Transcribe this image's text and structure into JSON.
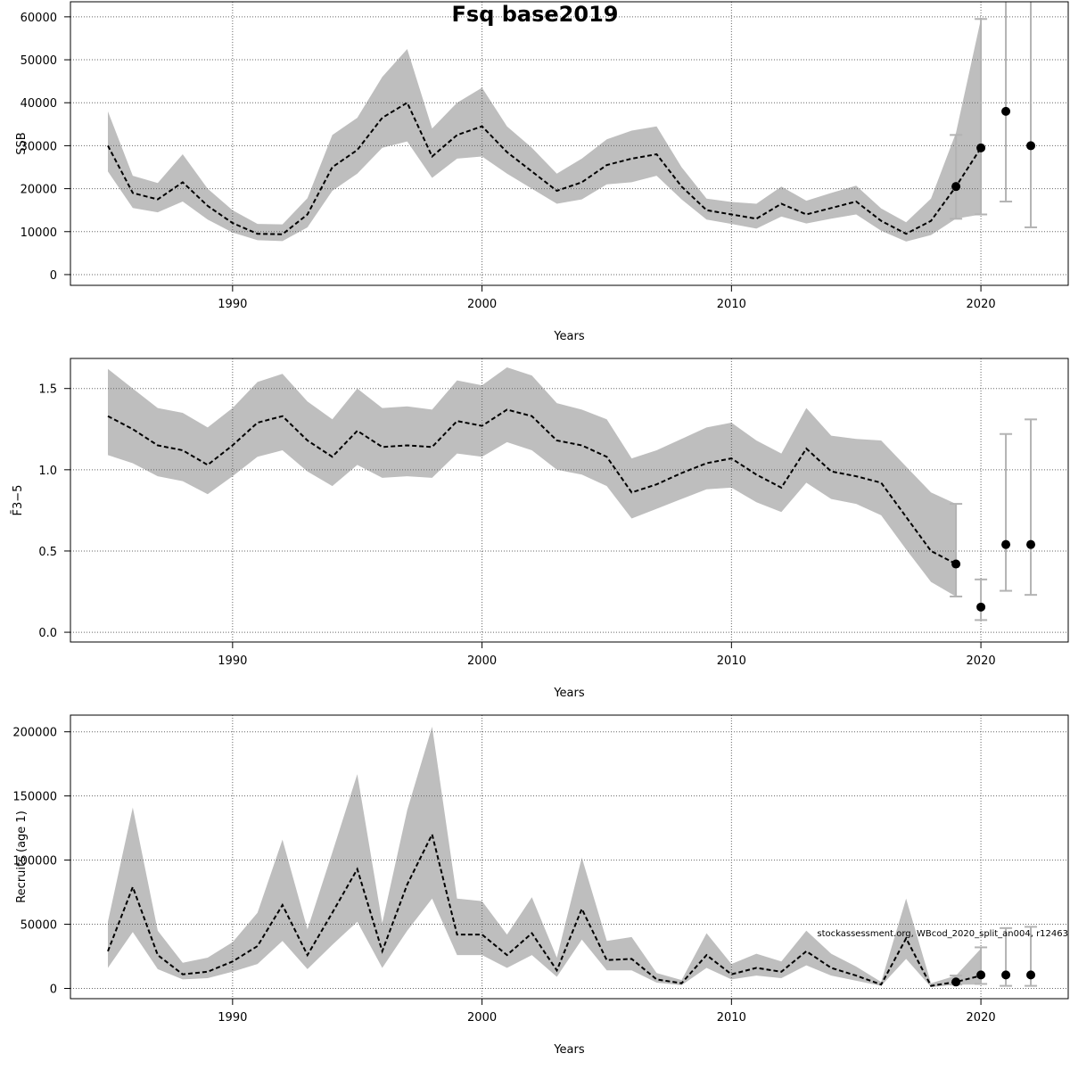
{
  "title": "Fsq base2019",
  "credit": "stockassessment.org, WBcod_2020_split_an004, r12463",
  "colors": {
    "band": "#bebebe",
    "errorbar": "#b3b3b3",
    "line": "#000000",
    "point": "#000000",
    "grid": "#666666"
  },
  "chart_data": [
    {
      "type": "area",
      "panel": "ssb",
      "ylabel": "SSB",
      "xlabel": "Years",
      "xlim": [
        1983.5,
        2023.5
      ],
      "ylim": [
        -2500,
        63500
      ],
      "xticks": [
        "1990",
        "2000",
        "2010",
        "2020"
      ],
      "yticks": [
        "0",
        "10000",
        "20000",
        "30000",
        "40000",
        "50000",
        "60000"
      ],
      "grid": true,
      "years": [
        1985,
        1986,
        1987,
        1988,
        1989,
        1990,
        1991,
        1992,
        1993,
        1994,
        1995,
        1996,
        1997,
        1998,
        1999,
        2000,
        2001,
        2002,
        2003,
        2004,
        2005,
        2006,
        2007,
        2008,
        2009,
        2010,
        2011,
        2012,
        2013,
        2014,
        2015,
        2016,
        2017,
        2018,
        2019,
        2020
      ],
      "estimate": [
        30000,
        19000,
        17500,
        21500,
        16000,
        12000,
        9500,
        9400,
        14000,
        25000,
        29000,
        36500,
        40000,
        27500,
        32500,
        34500,
        28500,
        24000,
        19500,
        21500,
        25500,
        27000,
        28000,
        20500,
        15000,
        14000,
        13000,
        16500,
        14000,
        15500,
        17000,
        12500,
        9500,
        12500,
        20500,
        29500
      ],
      "lower": [
        24000,
        15500,
        14500,
        17000,
        12800,
        9800,
        8000,
        7800,
        11000,
        19500,
        23500,
        29500,
        31000,
        22500,
        27000,
        27500,
        23500,
        20000,
        16500,
        17500,
        21000,
        21500,
        23000,
        17500,
        12800,
        11800,
        10700,
        13500,
        11900,
        13000,
        14000,
        10200,
        7700,
        9200,
        13000,
        14000
      ],
      "upper": [
        38000,
        23000,
        21300,
        28000,
        20000,
        15000,
        11800,
        11700,
        17800,
        32500,
        36500,
        46000,
        52500,
        34000,
        40000,
        43500,
        34500,
        29500,
        23500,
        27000,
        31500,
        33500,
        34500,
        25000,
        17700,
        16900,
        16500,
        20500,
        17200,
        19000,
        20700,
        15400,
        12200,
        17700,
        33000,
        59500
      ],
      "points": [
        {
          "year": 2019,
          "value": 20500
        },
        {
          "year": 2020,
          "value": 29500
        },
        {
          "year": 2021,
          "value": 38000
        },
        {
          "year": 2022,
          "value": 30000
        }
      ],
      "errorbars": [
        {
          "year": 2019,
          "low": 13000,
          "high": 32500
        },
        {
          "year": 2020,
          "low": 14000,
          "high": 59500
        },
        {
          "year": 2021,
          "low": 17000,
          "high": 70000
        },
        {
          "year": 2022,
          "low": 11000,
          "high": 70000
        }
      ]
    },
    {
      "type": "area",
      "panel": "fbar",
      "ylabel": "F̄3−5",
      "xlabel": "Years",
      "xlim": [
        1983.5,
        2023.5
      ],
      "ylim": [
        -0.06,
        1.685
      ],
      "xticks": [
        "1990",
        "2000",
        "2010",
        "2020"
      ],
      "yticks": [
        "0.0",
        "0.5",
        "1.0",
        "1.5"
      ],
      "grid": true,
      "years": [
        1985,
        1986,
        1987,
        1988,
        1989,
        1990,
        1991,
        1992,
        1993,
        1994,
        1995,
        1996,
        1997,
        1998,
        1999,
        2000,
        2001,
        2002,
        2003,
        2004,
        2005,
        2006,
        2007,
        2008,
        2009,
        2010,
        2011,
        2012,
        2013,
        2014,
        2015,
        2016,
        2017,
        2018,
        2019
      ],
      "estimate": [
        1.33,
        1.25,
        1.15,
        1.12,
        1.03,
        1.15,
        1.29,
        1.33,
        1.18,
        1.08,
        1.24,
        1.14,
        1.15,
        1.14,
        1.3,
        1.27,
        1.37,
        1.33,
        1.18,
        1.15,
        1.08,
        0.86,
        0.91,
        0.98,
        1.04,
        1.07,
        0.97,
        0.89,
        1.13,
        0.99,
        0.96,
        0.92,
        0.71,
        0.5,
        0.42
      ],
      "lower": [
        1.09,
        1.04,
        0.96,
        0.93,
        0.85,
        0.96,
        1.08,
        1.12,
        0.99,
        0.9,
        1.03,
        0.95,
        0.96,
        0.95,
        1.1,
        1.08,
        1.17,
        1.12,
        1.0,
        0.97,
        0.9,
        0.7,
        0.76,
        0.82,
        0.88,
        0.89,
        0.8,
        0.74,
        0.92,
        0.82,
        0.79,
        0.72,
        0.51,
        0.31,
        0.22
      ],
      "upper": [
        1.62,
        1.5,
        1.38,
        1.35,
        1.26,
        1.38,
        1.54,
        1.59,
        1.42,
        1.31,
        1.5,
        1.38,
        1.39,
        1.37,
        1.55,
        1.52,
        1.63,
        1.58,
        1.41,
        1.37,
        1.31,
        1.07,
        1.12,
        1.19,
        1.26,
        1.29,
        1.18,
        1.1,
        1.38,
        1.21,
        1.19,
        1.18,
        1.02,
        0.86,
        0.79
      ],
      "points": [
        {
          "year": 2019,
          "value": 0.42
        },
        {
          "year": 2020,
          "value": 0.155
        },
        {
          "year": 2021,
          "value": 0.54
        },
        {
          "year": 2022,
          "value": 0.54
        }
      ],
      "errorbars": [
        {
          "year": 2019,
          "low": 0.22,
          "high": 0.79
        },
        {
          "year": 2020,
          "low": 0.075,
          "high": 0.325
        },
        {
          "year": 2021,
          "low": 0.255,
          "high": 1.22
        },
        {
          "year": 2022,
          "low": 0.23,
          "high": 1.31
        }
      ]
    },
    {
      "type": "area",
      "panel": "recruits",
      "ylabel": "Recruits (age 1)",
      "xlabel": "Years",
      "xlim": [
        1983.5,
        2023.5
      ],
      "ylim": [
        -8000,
        213000
      ],
      "xticks": [
        "1990",
        "2000",
        "2010",
        "2020"
      ],
      "yticks": [
        "0",
        "50000",
        "100000",
        "150000",
        "200000"
      ],
      "grid": true,
      "years": [
        1985,
        1986,
        1987,
        1988,
        1989,
        1990,
        1991,
        1992,
        1993,
        1994,
        1995,
        1996,
        1997,
        1998,
        1999,
        2000,
        2001,
        2002,
        2003,
        2004,
        2005,
        2006,
        2007,
        2008,
        2009,
        2010,
        2011,
        2012,
        2013,
        2014,
        2015,
        2016,
        2017,
        2018,
        2019,
        2020
      ],
      "estimate": [
        29000,
        79000,
        26000,
        11000,
        13000,
        21000,
        33000,
        65000,
        26000,
        59000,
        93000,
        29000,
        81000,
        120000,
        42000,
        42000,
        26000,
        43000,
        14000,
        62000,
        22000,
        23000,
        7000,
        4000,
        26000,
        11000,
        16000,
        13000,
        29000,
        16000,
        10000,
        3000,
        39000,
        2000,
        5000,
        10000
      ],
      "lower": [
        16000,
        44000,
        15000,
        7000,
        8000,
        13000,
        19000,
        37000,
        15000,
        34000,
        52000,
        16000,
        45000,
        70000,
        26000,
        26000,
        16000,
        26000,
        9000,
        38000,
        14000,
        14000,
        4500,
        2500,
        16000,
        7000,
        10000,
        8000,
        18000,
        10000,
        6000,
        2000,
        23000,
        1000,
        3000,
        3000
      ],
      "upper": [
        52000,
        141000,
        45000,
        20000,
        24000,
        36000,
        59000,
        116000,
        46000,
        106000,
        167000,
        51000,
        139000,
        204000,
        70000,
        68000,
        42000,
        71000,
        24000,
        102000,
        37000,
        40000,
        12000,
        6500,
        43000,
        19000,
        27000,
        21000,
        45000,
        27000,
        17000,
        5000,
        70000,
        4000,
        10000,
        31000
      ],
      "points": [
        {
          "year": 2019,
          "value": 5000
        },
        {
          "year": 2020,
          "value": 10500
        },
        {
          "year": 2021,
          "value": 10500
        },
        {
          "year": 2022,
          "value": 10500
        }
      ],
      "errorbars": [
        {
          "year": 2019,
          "low": 3000,
          "high": 10000
        },
        {
          "year": 2020,
          "low": 3500,
          "high": 32000
        },
        {
          "year": 2021,
          "low": 2000,
          "high": 47000
        },
        {
          "year": 2022,
          "low": 2000,
          "high": 48000
        }
      ]
    }
  ]
}
